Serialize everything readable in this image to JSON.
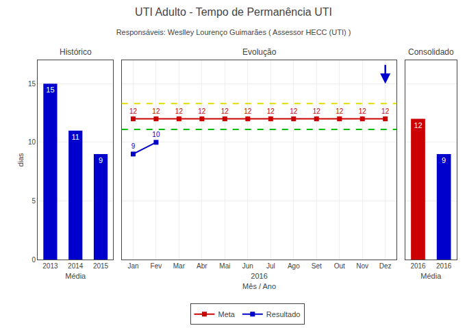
{
  "title": "UTI Adulto - Tempo de Permanência UTI",
  "subtitle": "Responsáveis: Weslley Lourenço Guimarães ( Assessor HECC (UTI) )",
  "chart_data": [
    {
      "type": "bar",
      "title": "Histórico",
      "categories": [
        "2013",
        "2014",
        "2015"
      ],
      "values": [
        15,
        11,
        9
      ],
      "color": "#0000CC",
      "x_label": "Média",
      "y_label": "dias",
      "ylim": [
        0,
        17
      ],
      "yticks": [
        0,
        5,
        10,
        15
      ],
      "grid": "y",
      "data_labels": true
    },
    {
      "type": "line",
      "title": "Evolução",
      "categories": [
        "Jan",
        "Fev",
        "Mar",
        "Abr",
        "Mai",
        "Jun",
        "Jul",
        "Ago",
        "Set",
        "Out",
        "Nov",
        "Dez"
      ],
      "series": [
        {
          "name": "Meta",
          "color": "#CC0000",
          "marker": "square",
          "values": [
            12,
            12,
            12,
            12,
            12,
            12,
            12,
            12,
            12,
            12,
            12,
            12
          ]
        },
        {
          "name": "Resultado",
          "color": "#0000CC",
          "marker": "square",
          "values": [
            9,
            10,
            null,
            null,
            null,
            null,
            null,
            null,
            null,
            null,
            null,
            null
          ]
        }
      ],
      "reference_lines": [
        {
          "value": 13.3,
          "color": "#DDDD00",
          "line_style": "dashed"
        },
        {
          "value": 11.1,
          "color": "#00BB00",
          "line_style": "dashed"
        }
      ],
      "arrows": [
        {
          "category": "Dez",
          "start": 16.7,
          "end": 15.0,
          "color": "#0000CC"
        }
      ],
      "x_label": [
        "2016",
        "Mês / Ano"
      ],
      "ylim": [
        0,
        17
      ],
      "yticks": [
        0,
        5,
        10,
        15
      ],
      "grid": true,
      "data_labels": true,
      "tick_labels": "x",
      "legend": "bottom"
    },
    {
      "type": "bar",
      "title": "Consolidado",
      "categories": [
        "2016",
        "2016"
      ],
      "values": [
        12,
        9
      ],
      "colors": [
        "#CC0000",
        "#0000CC"
      ],
      "x_label": "Média",
      "ylim": [
        0,
        17
      ],
      "yticks": [
        0,
        5,
        10,
        15
      ],
      "grid": "y",
      "data_labels": true,
      "tick_labels": "x"
    }
  ]
}
